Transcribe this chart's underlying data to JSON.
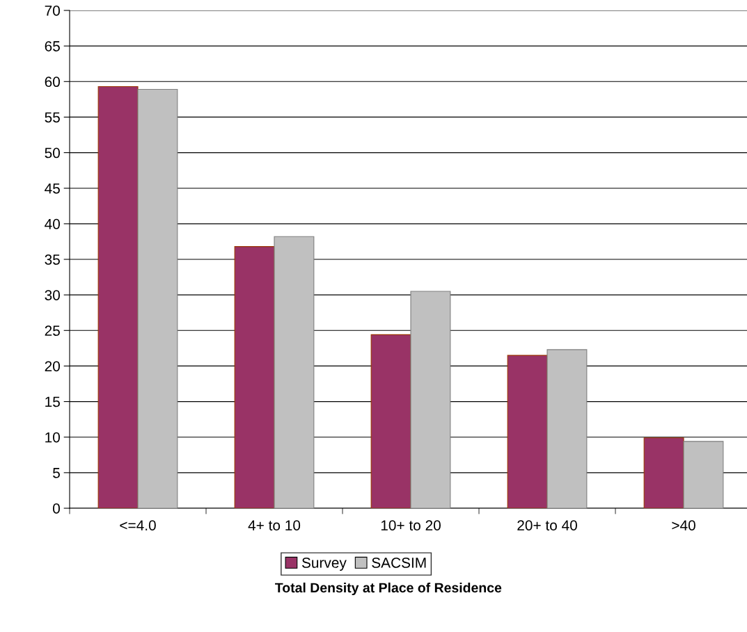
{
  "chart_data": {
    "type": "bar",
    "xlabel": "Total Density at Place of Residence",
    "categories": [
      "<=4.0",
      "4+ to 10",
      "10+ to 20",
      "20+ to 40",
      ">40"
    ],
    "series": [
      {
        "name": "Survey",
        "color": "#993366",
        "values": [
          59.3,
          36.8,
          24.4,
          21.5,
          9.9
        ]
      },
      {
        "name": "SACSIM",
        "color": "#c0c0c0",
        "values": [
          58.9,
          38.2,
          30.5,
          22.3,
          9.4
        ]
      }
    ],
    "ylim": [
      0,
      70
    ],
    "yticks": [
      0,
      5,
      10,
      15,
      20,
      25,
      30,
      35,
      40,
      45,
      50,
      55,
      60,
      65,
      70
    ],
    "grid": "y",
    "legend": "bottom"
  }
}
